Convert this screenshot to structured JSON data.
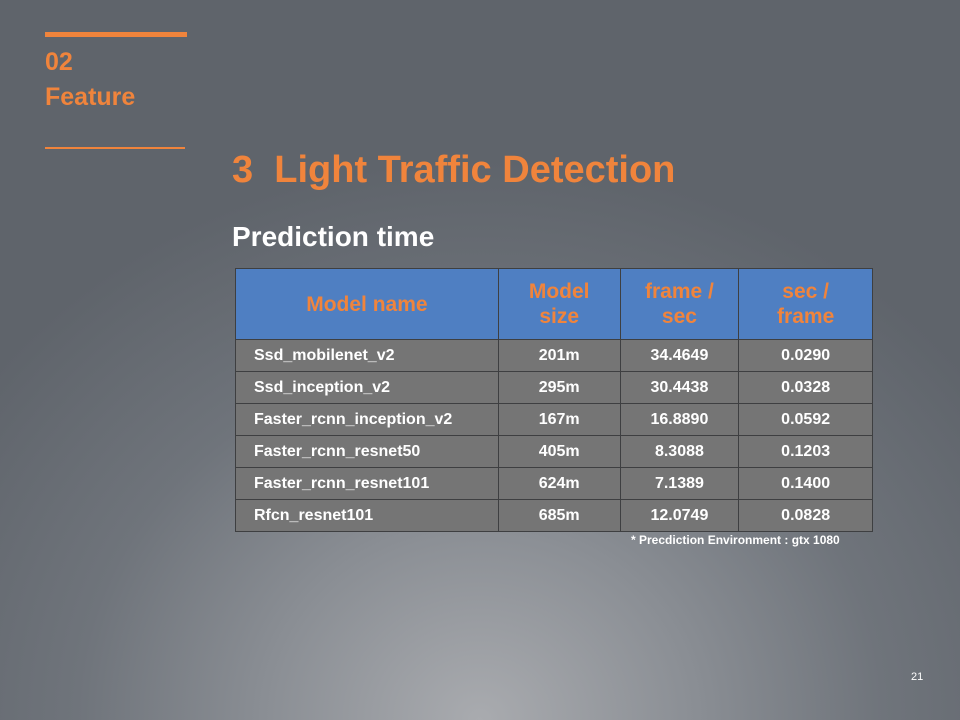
{
  "section": {
    "number": "02",
    "name": "Feature"
  },
  "title": "3  Light Traffic Detection",
  "subtitle": "Prediction time",
  "table": {
    "headers": [
      {
        "line1": "Model name",
        "line2": ""
      },
      {
        "line1": "Model",
        "line2": "size"
      },
      {
        "line1": "frame /",
        "line2": "sec"
      },
      {
        "line1": "sec /",
        "line2": "frame"
      }
    ],
    "rows": [
      [
        "Ssd_mobilenet_v2",
        "201m",
        "34.4649",
        "0.0290"
      ],
      [
        "Ssd_inception_v2",
        "295m",
        "30.4438",
        "0.0328"
      ],
      [
        "Faster_rcnn_inception_v2",
        "167m",
        "16.8890",
        "0.0592"
      ],
      [
        "Faster_rcnn_resnet50",
        "405m",
        "8.3088",
        "0.1203"
      ],
      [
        "Faster_rcnn_resnet101",
        "624m",
        "7.1389",
        "0.1400"
      ],
      [
        "Rfcn_resnet101",
        "685m",
        "12.0749",
        "0.0828"
      ]
    ]
  },
  "note": "* Precdiction Environment : gtx 1080",
  "page_number": "21",
  "colors": {
    "accent": "#f0843c",
    "header_fill": "#4f7fc2",
    "cell_fill": "#757575"
  }
}
